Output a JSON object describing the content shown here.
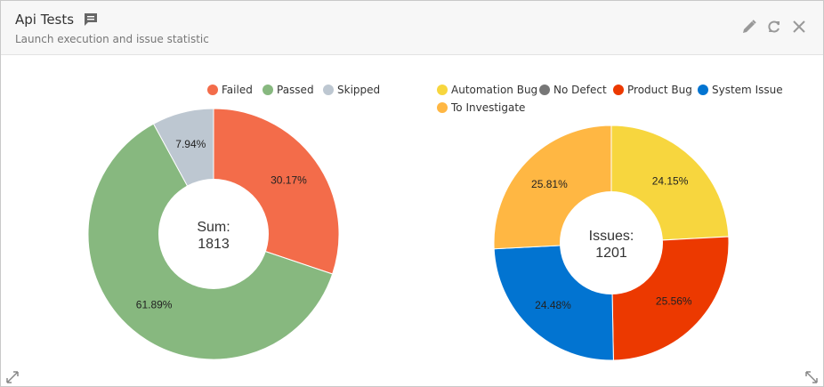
{
  "header": {
    "title": "Api Tests",
    "subtitle": "Launch execution and issue statistic",
    "icons": {
      "comment": "comment-icon",
      "edit": "pencil-icon",
      "refresh": "refresh-icon",
      "close": "close-icon"
    }
  },
  "chart_data": [
    {
      "type": "pie",
      "center_label": "Sum:",
      "center_value": "1813",
      "legend_position": "top",
      "slices": [
        {
          "name": "Failed",
          "value": 30.17,
          "label": "30.17%",
          "color": "#f36c4a"
        },
        {
          "name": "Passed",
          "value": 61.89,
          "label": "61.89%",
          "color": "#87b87f"
        },
        {
          "name": "Skipped",
          "value": 7.94,
          "label": "7.94%",
          "color": "#bdc7d1"
        }
      ]
    },
    {
      "type": "pie",
      "center_label": "Issues:",
      "center_value": "1201",
      "legend_position": "top",
      "legend": [
        {
          "name": "Automation Bug",
          "color": "#f7d63e"
        },
        {
          "name": "No Defect",
          "color": "#777777"
        },
        {
          "name": "Product Bug",
          "color": "#ec3900"
        },
        {
          "name": "System Issue",
          "color": "#0274d1"
        },
        {
          "name": "To Investigate",
          "color": "#ffb743"
        }
      ],
      "slices": [
        {
          "name": "Automation Bug",
          "value": 24.15,
          "label": "24.15%",
          "color": "#f7d63e"
        },
        {
          "name": "No Defect",
          "value": 0,
          "label": "",
          "color": "#777777"
        },
        {
          "name": "Product Bug",
          "value": 25.56,
          "label": "25.56%",
          "color": "#ec3900"
        },
        {
          "name": "System Issue",
          "value": 24.48,
          "label": "24.48%",
          "color": "#0274d1"
        },
        {
          "name": "To Investigate",
          "value": 25.81,
          "label": "25.81%",
          "color": "#ffb743"
        }
      ]
    }
  ]
}
